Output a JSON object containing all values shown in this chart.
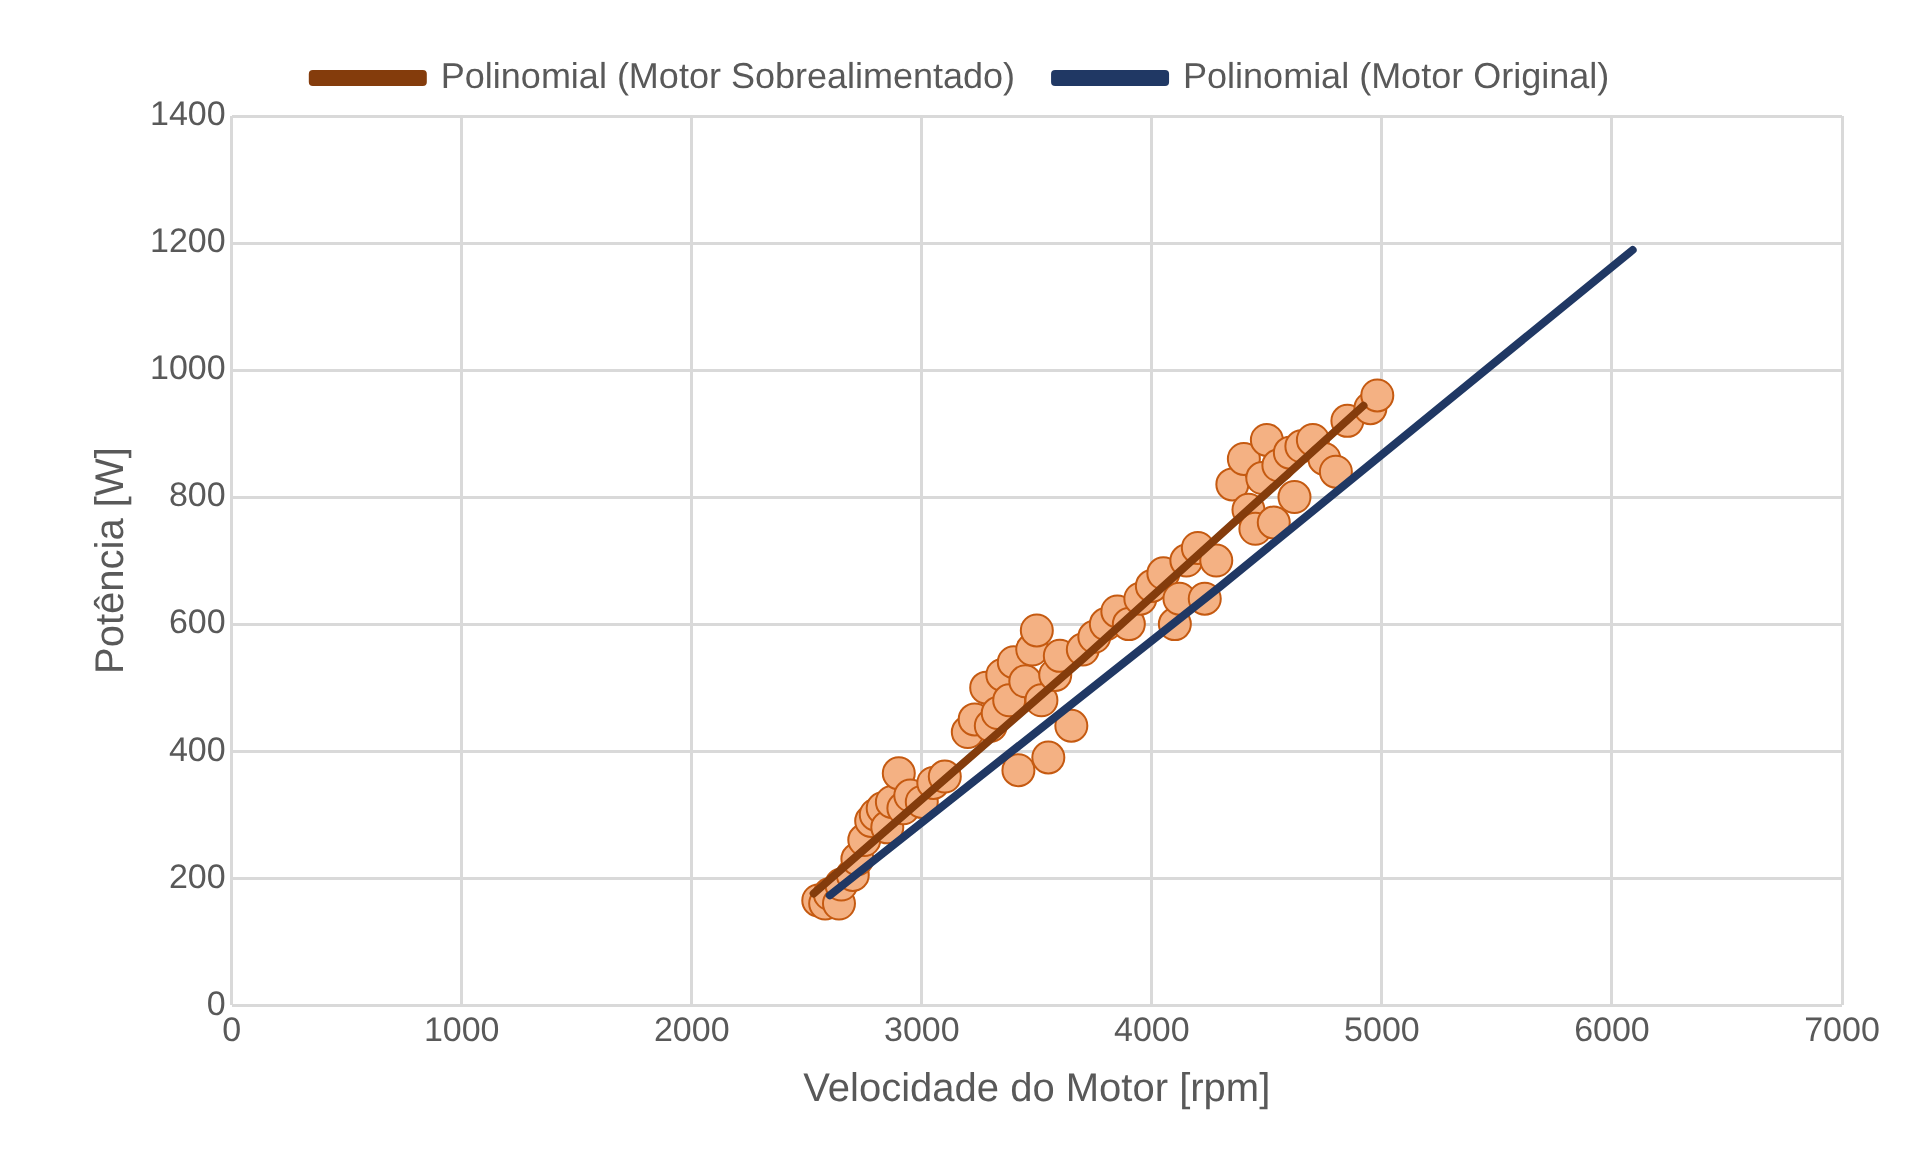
{
  "chart_data": {
    "type": "scatter",
    "xlabel": "Velocidade do Motor [rpm]",
    "ylabel": "Potência [W]",
    "xlim": [
      0,
      7000
    ],
    "xticks": [
      0,
      1000,
      2000,
      3000,
      4000,
      5000,
      6000,
      7000
    ],
    "ylim": [
      0,
      1400
    ],
    "yticks": [
      0,
      200,
      400,
      600,
      800,
      1000,
      1200,
      1400
    ],
    "grid": true,
    "legend": "top",
    "series": [
      {
        "marker": "circle",
        "color": "#f4b183",
        "x": [
          2550,
          2580,
          2600,
          2640,
          2650,
          2700,
          2720,
          2750,
          2780,
          2800,
          2830,
          2850,
          2870,
          2900,
          2920,
          2950,
          3000,
          3050,
          3100,
          3200,
          3230,
          3280,
          3300,
          3330,
          3350,
          3380,
          3400,
          3420,
          3450,
          3480,
          3500,
          3520,
          3550,
          3580,
          3600,
          3650,
          3700,
          3750,
          3800,
          3850,
          3900,
          3950,
          4000,
          4050,
          4100,
          4120,
          4150,
          4200,
          4230,
          4280,
          4350,
          4400,
          4420,
          4450,
          4480,
          4500,
          4530,
          4550,
          4600,
          4620,
          4650,
          4700,
          4750,
          4800,
          4850,
          4950,
          4980
        ],
        "values": [
          165,
          160,
          175,
          160,
          190,
          205,
          230,
          260,
          290,
          300,
          310,
          280,
          320,
          365,
          310,
          330,
          320,
          350,
          360,
          430,
          450,
          500,
          440,
          460,
          520,
          480,
          540,
          370,
          510,
          560,
          590,
          480,
          390,
          520,
          550,
          440,
          560,
          580,
          600,
          620,
          600,
          640,
          660,
          680,
          600,
          640,
          700,
          720,
          640,
          700,
          820,
          860,
          780,
          750,
          830,
          890,
          760,
          850,
          870,
          800,
          880,
          890,
          860,
          840,
          920,
          940,
          960
        ]
      },
      {
        "type": "line",
        "marker": "none",
        "name": "Polinomial (Motor Sobrealimentado)",
        "color": "#843c0c",
        "x": [
          2530,
          3700,
          4920
        ],
        "values": [
          176,
          545,
          944
        ]
      },
      {
        "type": "line",
        "marker": "none",
        "name": "Polinomial (Motor Original)",
        "color": "#203864",
        "x": [
          2600,
          4300,
          6090
        ],
        "values": [
          173,
          660,
          1189
        ]
      }
    ]
  }
}
